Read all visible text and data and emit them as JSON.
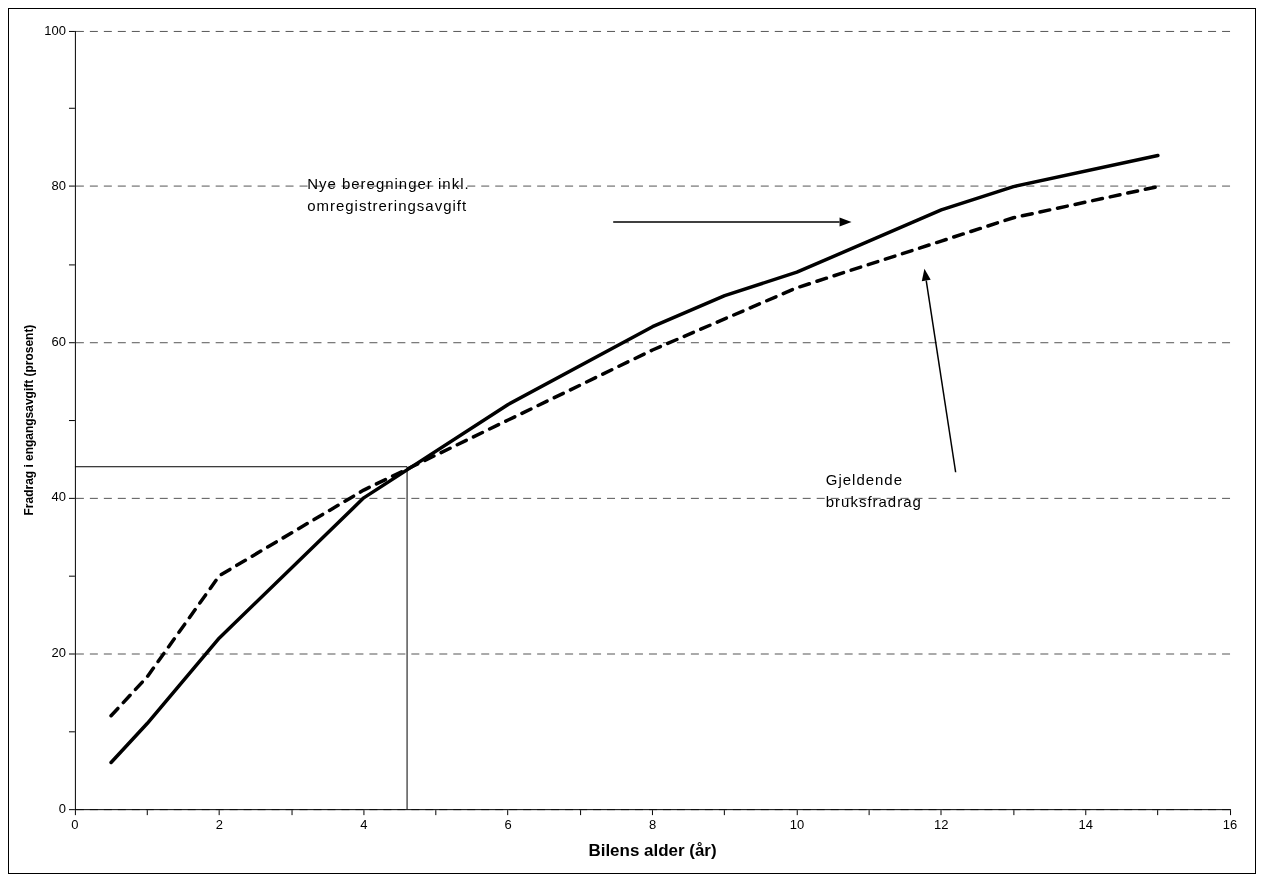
{
  "chart_data": {
    "type": "line",
    "xlabel": "Bilens alder (år)",
    "ylabel": "Fradrag i engangsavgift (prosent)",
    "x": [
      0.5,
      1,
      2,
      4,
      6,
      8,
      9,
      10,
      12,
      13,
      15
    ],
    "series": [
      {
        "color": "#000000",
        "line_style": "solid",
        "values": [
          6,
          11,
          22,
          40,
          52,
          62,
          66,
          69,
          77,
          80,
          84
        ]
      },
      {
        "color": "#000000",
        "line_style": "dashed",
        "values": [
          12,
          17,
          30,
          41,
          50,
          59,
          63,
          67,
          73,
          76,
          80
        ]
      }
    ],
    "ref_lines": [
      {
        "axis": "x",
        "value": 4.6,
        "color": "#000000"
      },
      {
        "axis": "y",
        "value": 44,
        "color": "#000000"
      }
    ],
    "xlim": [
      0,
      16
    ],
    "xticks": [
      0,
      {
        "value": 1,
        "label": null
      },
      2,
      {
        "value": 3,
        "label": null
      },
      4,
      {
        "value": 5,
        "label": null
      },
      6,
      {
        "value": 7,
        "label": null
      },
      8,
      {
        "value": 9,
        "label": null
      },
      10,
      {
        "value": 11,
        "label": null
      },
      12,
      {
        "value": 13,
        "label": null
      },
      14,
      {
        "value": 15,
        "label": null
      },
      16
    ],
    "ylim": [
      0,
      100
    ],
    "yticks": [
      0,
      {
        "value": 10,
        "label": null
      },
      20,
      {
        "value": 30,
        "label": null
      },
      40,
      {
        "value": 50,
        "label": null
      },
      60,
      {
        "value": 70,
        "label": null
      },
      80,
      {
        "value": 90,
        "label": null
      },
      100
    ],
    "grid": "y",
    "legend": false,
    "marker": "none",
    "annotations": [
      "Nye beregninger inkl.\nomregistreringsavgift",
      "Gjeldende\nbruksfradrag"
    ]
  }
}
